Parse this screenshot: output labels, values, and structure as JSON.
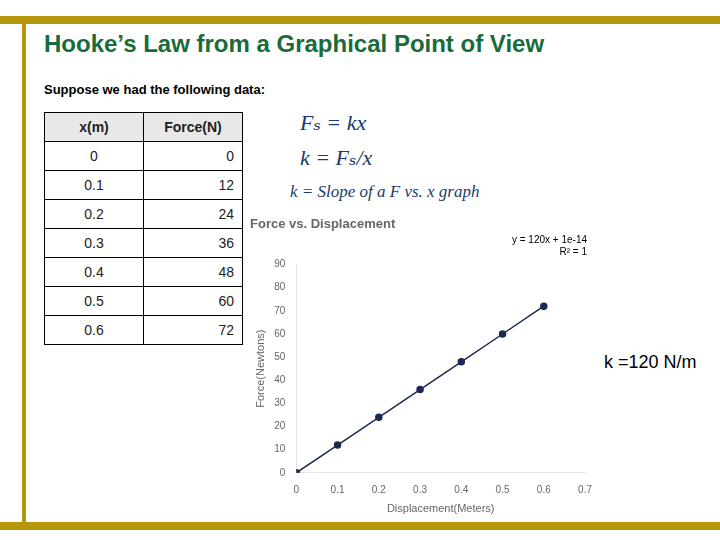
{
  "title": "Hooke’s Law from a Graphical Point of View",
  "subtitle": "Suppose we had the following data:",
  "table": {
    "headers": [
      "x(m)",
      "Force(N)"
    ],
    "rows": [
      [
        0,
        0
      ],
      [
        0.1,
        12
      ],
      [
        0.2,
        24
      ],
      [
        0.3,
        36
      ],
      [
        0.4,
        48
      ],
      [
        0.5,
        60
      ],
      [
        0.6,
        72
      ]
    ]
  },
  "annotations": [
    "Fₛ = kx",
    "k = Fₛ/x",
    "k = Slope of a F vs. x graph",
    "k =120 N/m"
  ],
  "chart_data": {
    "type": "line",
    "title": "Force vs. Displacement",
    "annotations": [
      "y = 120x + 1e-14",
      "R² = 1"
    ],
    "xlabel": "Displacement(Meters)",
    "ylabel": "Force(Newtons)",
    "x": [
      0,
      0.1,
      0.2,
      0.3,
      0.4,
      0.5,
      0.6
    ],
    "values": [
      0,
      12,
      24,
      36,
      48,
      60,
      72
    ],
    "color": "#1c2951",
    "marker": "circle",
    "line_style": "solid",
    "xlim": [
      0,
      0.7
    ],
    "ylim": [
      0,
      90
    ],
    "xticks": [
      0,
      0.1,
      0.2,
      0.3,
      0.4,
      0.5,
      0.6,
      0.7
    ],
    "yticks": [
      0,
      10,
      20,
      30,
      40,
      50,
      60,
      70,
      80,
      90
    ],
    "grid": false
  }
}
